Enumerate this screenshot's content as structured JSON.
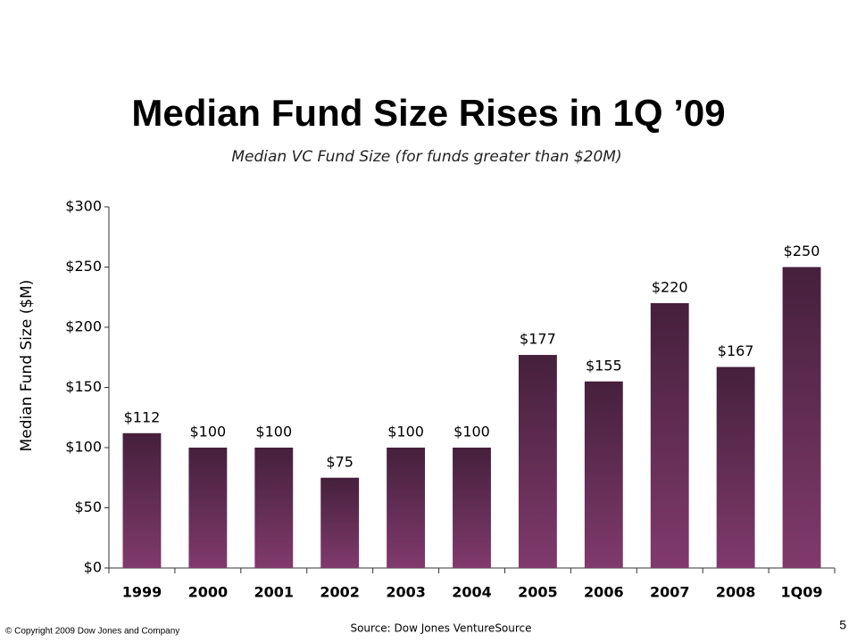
{
  "chart_data": {
    "type": "bar",
    "title": "Median Fund Size Rises in 1Q ’09",
    "subtitle": "Median VC Fund Size (for funds greater than $20M)",
    "y_label": "Median Fund Size ($M)",
    "categories": [
      "1999",
      "2000",
      "2001",
      "2002",
      "2003",
      "2004",
      "2005",
      "2006",
      "2007",
      "2008",
      "1Q09"
    ],
    "values": [
      112,
      100,
      100,
      75,
      100,
      100,
      177,
      155,
      220,
      167,
      250
    ],
    "value_labels": [
      "$112",
      "$100",
      "$100",
      "$75",
      "$100",
      "$100",
      "$177",
      "$155",
      "$220",
      "$167",
      "$250"
    ],
    "color": "#803a6c",
    "ylim": [
      0,
      300
    ],
    "yticks": [
      {
        "value": 0,
        "label": "$0"
      },
      {
        "value": 50,
        "label": "$50"
      },
      {
        "value": 100,
        "label": "$100"
      },
      {
        "value": 150,
        "label": "$150"
      },
      {
        "value": 200,
        "label": "$200"
      },
      {
        "value": 250,
        "label": "$250"
      },
      {
        "value": 300,
        "label": "$300"
      }
    ],
    "source": "Source: Dow Jones VentureSource",
    "copyright": "© Copyright 2009 Dow Jones and Company",
    "page_number": "5"
  }
}
